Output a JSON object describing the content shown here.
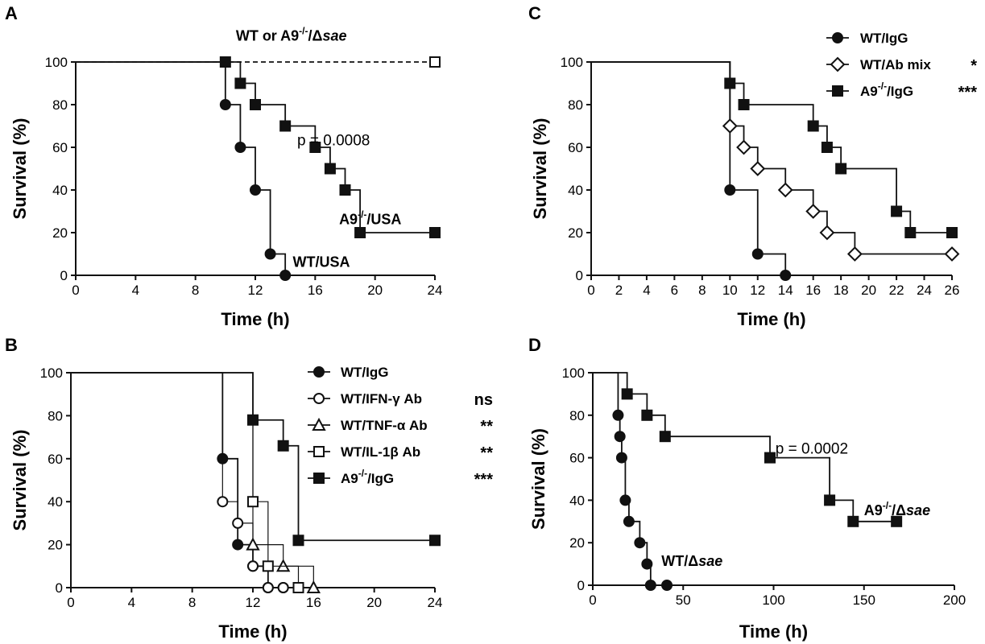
{
  "chart_data": [
    {
      "type": "line",
      "panel": "A",
      "xlabel": "Time (h)",
      "ylabel": "Survival (%)",
      "xlim": [
        0,
        24
      ],
      "ylim": [
        0,
        100
      ],
      "xticks": [
        0,
        4,
        8,
        12,
        16,
        20,
        24
      ],
      "yticks": [
        0,
        20,
        40,
        60,
        80,
        100
      ],
      "grid": false,
      "series": [
        {
          "label": "WT/USA",
          "marker": "circle",
          "fill": "filled",
          "dashed": false,
          "x": [
            0,
            10,
            11,
            12,
            13,
            14
          ],
          "y": [
            100,
            80,
            60,
            40,
            10,
            0
          ]
        },
        {
          "label": "A9-/-/USA",
          "marker": "square",
          "fill": "filled",
          "dashed": false,
          "x": [
            0,
            10,
            11,
            12,
            14,
            16,
            17,
            18,
            19,
            24
          ],
          "y": [
            100,
            100,
            90,
            80,
            70,
            60,
            50,
            40,
            20,
            20
          ]
        },
        {
          "label": "WT or A9-/-/Δsae",
          "marker": "square",
          "fill": "open",
          "dashed": true,
          "x": [
            0,
            24
          ],
          "y": [
            100,
            100
          ]
        }
      ],
      "annotations": [
        {
          "text": "WT or A9",
          "sup": "-/-",
          "tail": "/Δ",
          "ital": "sae",
          "x": 10.7,
          "y": 110,
          "style": "bold"
        },
        {
          "text": "p = 0.0008",
          "x": 14.8,
          "y": 61,
          "style": "plain"
        },
        {
          "text": "A9",
          "sup": "-/-",
          "tail": "/USA",
          "x": 17.6,
          "y": 24,
          "style": "bold"
        },
        {
          "text": "WT/USA",
          "x": 14.5,
          "y": 4,
          "style": "bold"
        }
      ]
    },
    {
      "type": "line",
      "panel": "B",
      "xlabel": "Time (h)",
      "ylabel": "Survival (%)",
      "xlim": [
        0,
        24
      ],
      "ylim": [
        0,
        100
      ],
      "xticks": [
        0,
        4,
        8,
        12,
        16,
        20,
        24
      ],
      "yticks": [
        0,
        20,
        40,
        60,
        80,
        100
      ],
      "grid": false,
      "legend": "top-right",
      "series": [
        {
          "name": "WT/IgG",
          "marker": "circle",
          "fill": "filled",
          "x": [
            0,
            10,
            11,
            12,
            13,
            14
          ],
          "y": [
            100,
            60,
            20,
            10,
            0,
            0
          ]
        },
        {
          "name": "WT/IFN-γ Ab",
          "marker": "circle",
          "fill": "open",
          "x": [
            0,
            10,
            11,
            12,
            13,
            14
          ],
          "y": [
            100,
            40,
            30,
            10,
            0,
            0
          ]
        },
        {
          "name": "WT/TNF-α Ab",
          "marker": "triangle",
          "fill": "open",
          "x": [
            0,
            12,
            14,
            16
          ],
          "y": [
            100,
            20,
            10,
            0
          ]
        },
        {
          "name": "WT/IL-1β Ab",
          "marker": "square",
          "fill": "open",
          "x": [
            0,
            12,
            13,
            15
          ],
          "y": [
            100,
            40,
            10,
            0
          ]
        },
        {
          "name": "A9-/-/IgG",
          "marker": "square",
          "fill": "filled",
          "x": [
            0,
            12,
            14,
            15,
            24
          ],
          "y": [
            100,
            78,
            66,
            22,
            22
          ]
        }
      ],
      "legend_entries": [
        {
          "text": "WT/IgG",
          "sig": ""
        },
        {
          "text": "WT/IFN-γ Ab",
          "sig": "ns"
        },
        {
          "text": "WT/TNF-α Ab",
          "sig": "**"
        },
        {
          "text": "WT/IL-1β Ab",
          "sig": "**"
        },
        {
          "text": "A9",
          "sup": "-/-",
          "tail": "/IgG",
          "sig": "***"
        }
      ]
    },
    {
      "type": "line",
      "panel": "C",
      "xlabel": "Time (h)",
      "ylabel": "Survival (%)",
      "xlim": [
        0,
        26
      ],
      "ylim": [
        0,
        100
      ],
      "xticks": [
        0,
        2,
        4,
        6,
        8,
        10,
        12,
        14,
        16,
        18,
        20,
        22,
        24,
        26
      ],
      "yticks": [
        0,
        20,
        40,
        60,
        80,
        100
      ],
      "grid": false,
      "legend": "top-right",
      "series": [
        {
          "name": "WT/IgG",
          "marker": "circle",
          "fill": "filled",
          "x": [
            0,
            10,
            12,
            14
          ],
          "y": [
            100,
            40,
            10,
            0
          ]
        },
        {
          "name": "WT/Ab mix",
          "marker": "diamond",
          "fill": "open",
          "x": [
            0,
            10,
            11,
            12,
            14,
            16,
            17,
            19,
            26
          ],
          "y": [
            100,
            70,
            60,
            50,
            40,
            30,
            20,
            10,
            10
          ]
        },
        {
          "name": "A9-/-/IgG",
          "marker": "square",
          "fill": "filled",
          "x": [
            0,
            10,
            11,
            16,
            17,
            18,
            22,
            23,
            26
          ],
          "y": [
            100,
            90,
            80,
            70,
            60,
            50,
            30,
            20,
            20
          ]
        }
      ],
      "legend_entries": [
        {
          "text": "WT/IgG",
          "sig": ""
        },
        {
          "text": "WT/Ab mix",
          "sig": "*"
        },
        {
          "text": "A9",
          "sup": "-/-",
          "tail": "/IgG",
          "sig": "***"
        }
      ]
    },
    {
      "type": "line",
      "panel": "D",
      "xlabel": "Time (h)",
      "ylabel": "Survival (%)",
      "xlim": [
        0,
        200
      ],
      "ylim": [
        0,
        100
      ],
      "xticks": [
        0,
        50,
        100,
        150,
        200
      ],
      "yticks": [
        0,
        20,
        40,
        60,
        80,
        100
      ],
      "grid": false,
      "series": [
        {
          "label": "WT/Δsae",
          "marker": "circle",
          "fill": "filled",
          "x": [
            0,
            14,
            15,
            16,
            18,
            20,
            26,
            30,
            32,
            41
          ],
          "y": [
            100,
            80,
            70,
            60,
            40,
            30,
            20,
            10,
            0,
            0
          ]
        },
        {
          "label": "A9-/-/Δsae",
          "marker": "square",
          "fill": "filled",
          "x": [
            0,
            19,
            30,
            40,
            98,
            131,
            144,
            168
          ],
          "y": [
            100,
            90,
            80,
            70,
            60,
            40,
            30,
            30
          ]
        }
      ],
      "annotations": [
        {
          "text": "p = 0.0002",
          "x": 101,
          "y": 62,
          "style": "plain"
        },
        {
          "text": "A9",
          "sup": "-/-",
          "tail": "/Δ",
          "ital": "sae",
          "x": 150,
          "y": 33,
          "style": "bold"
        },
        {
          "text": "WT/Δ",
          "ital": "sae",
          "x": 38,
          "y": 9,
          "style": "bold"
        }
      ]
    }
  ]
}
